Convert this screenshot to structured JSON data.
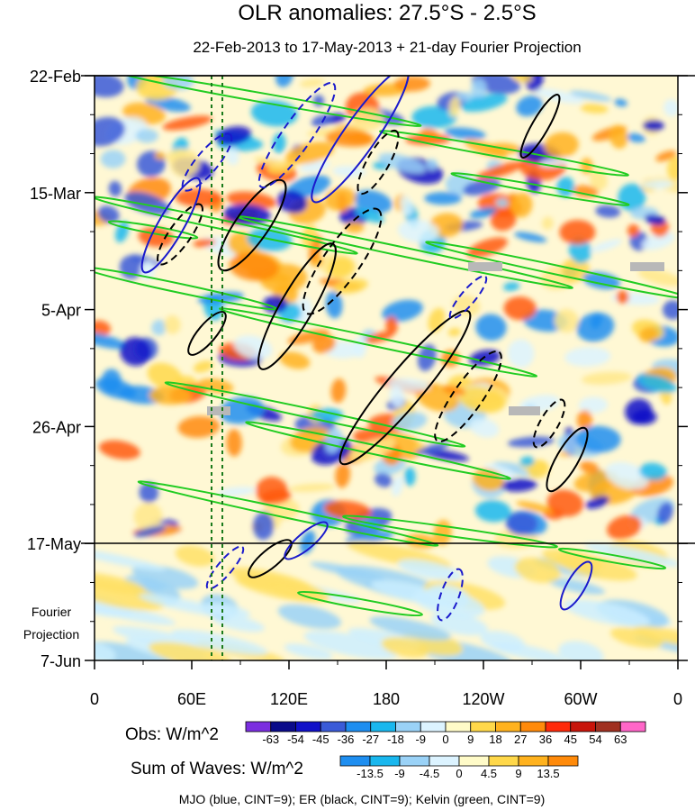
{
  "chart_data": {
    "type": "heatmap",
    "title": "OLR anomalies: 27.5°S - 2.5°S",
    "subtitle": "22-Feb-2013 to 17-May-2013 + 21-day Fourier Projection",
    "x_ticks": [
      "0",
      "60E",
      "120E",
      "180",
      "120W",
      "60W",
      "0"
    ],
    "x_range_deg": [
      0,
      360
    ],
    "y_ticks": [
      "22-Feb",
      "15-Mar",
      "5-Apr",
      "26-Apr",
      "17-May",
      "7-Jun"
    ],
    "y_range_days": [
      0,
      105
    ],
    "observation_end_label": "17-May",
    "projection_label": [
      "Fourier",
      "Projection"
    ],
    "obs_colorbar": {
      "label": "Obs: W/m^2",
      "levels": [
        "-63",
        "-54",
        "-45",
        "-36",
        "-27",
        "-18",
        "-9",
        "0",
        "9",
        "18",
        "27",
        "36",
        "45",
        "54",
        "63"
      ],
      "colors": [
        "#7b2ee0",
        "#0a0a8a",
        "#1010c8",
        "#3a5bd8",
        "#1e8ef0",
        "#19b7ee",
        "#9ad2f7",
        "#dcf3ff",
        "#fffbc8",
        "#ffd84a",
        "#ffb21e",
        "#ff8a0a",
        "#ff2a0a",
        "#c8140a",
        "#a03020",
        "#ff66c8"
      ]
    },
    "waves_colorbar": {
      "label": "Sum of Waves: W/m^2",
      "levels": [
        "-13.5",
        "-9",
        "-4.5",
        "0",
        "4.5",
        "9",
        "13.5"
      ],
      "colors": [
        "#1e8ef0",
        "#19b7ee",
        "#9ad2f7",
        "#dcf3ff",
        "#fffbc8",
        "#ffd84a",
        "#ffb21e",
        "#ff8a0a"
      ]
    },
    "footnote": "MJO (blue, CINT=9); ER (black, CINT=9); Kelvin (green, CINT=9)",
    "series": [
      {
        "name": "MJO",
        "color": "#1a1acc"
      },
      {
        "name": "ER",
        "color": "#000000"
      },
      {
        "name": "Kelvin",
        "color": "#22cc22"
      }
    ]
  }
}
